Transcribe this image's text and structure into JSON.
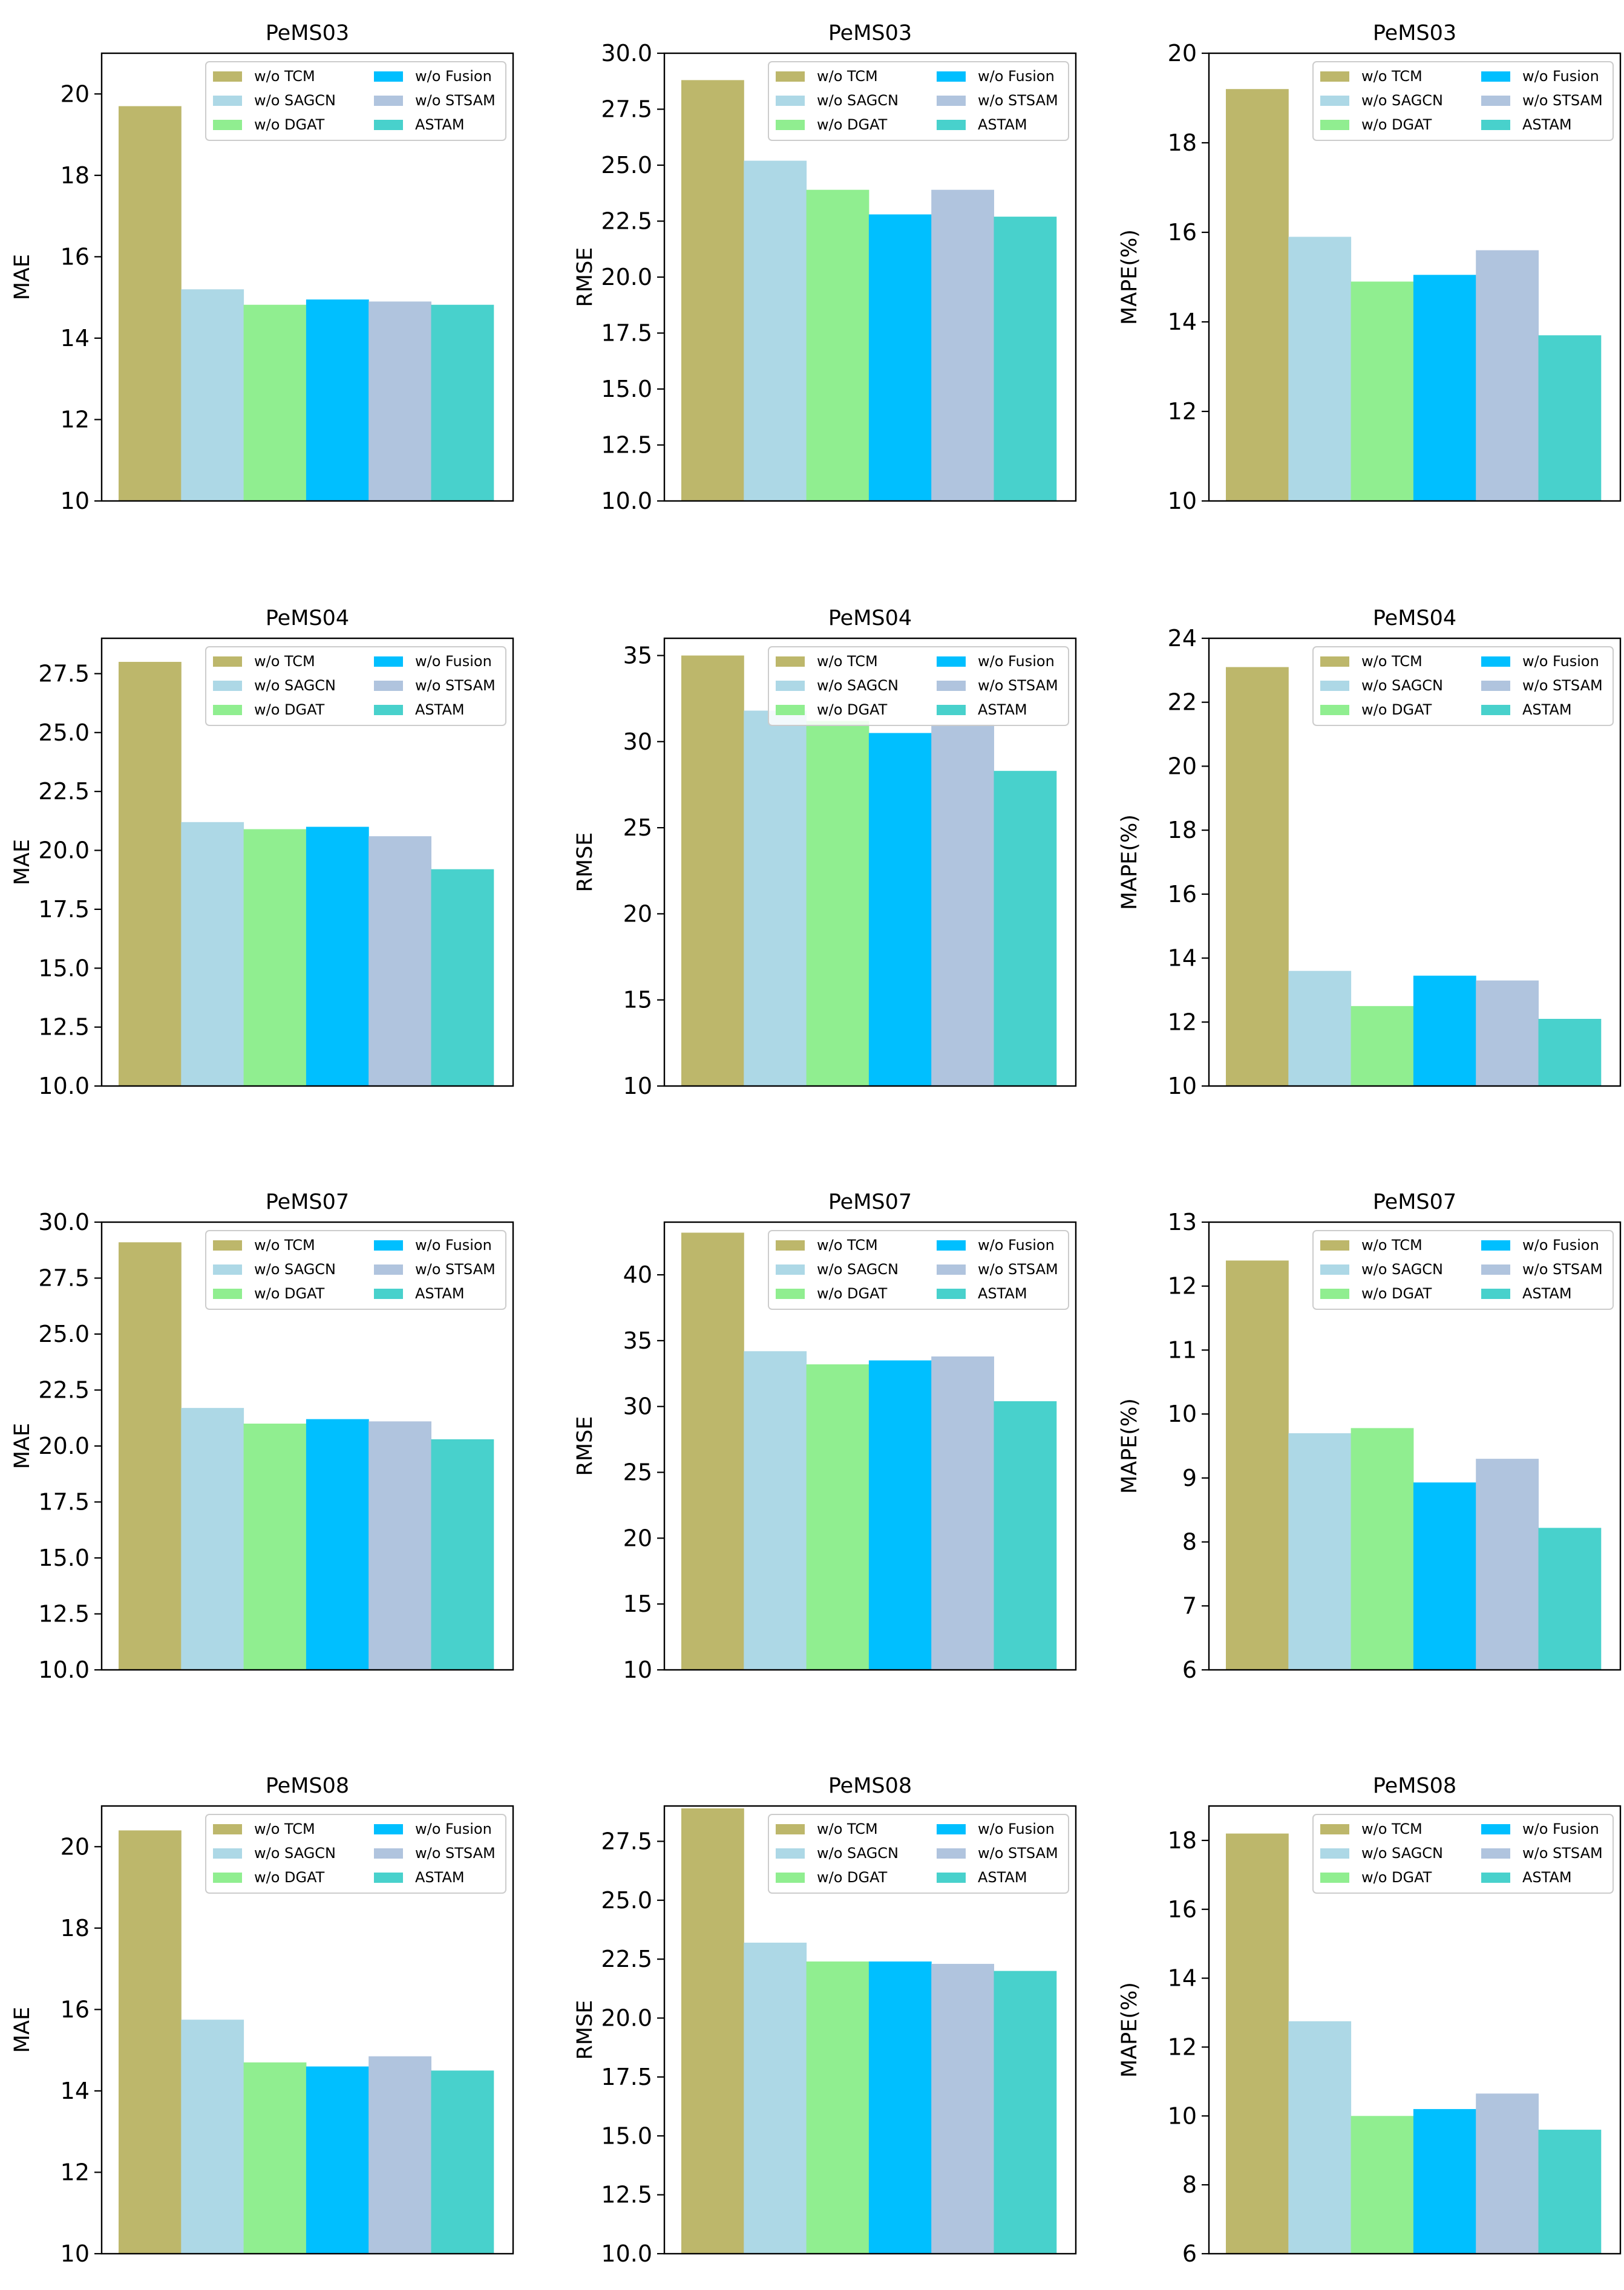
{
  "legend_entries": [
    "w/o TCM",
    "w/o SAGCN",
    "w/o DGAT",
    "w/o Fusion",
    "w/o STSAM",
    "ASTAM"
  ],
  "colors": [
    "#bdb76b",
    "#add8e6",
    "#90ee90",
    "#00bfff",
    "#b0c4de",
    "#48d1cc"
  ],
  "chart_data": [
    {
      "type": "bar",
      "title": "PeMS03",
      "ylabel": "MAE",
      "ylim": [
        10,
        21
      ],
      "ticks": [
        "10",
        "12",
        "14",
        "16",
        "18",
        "20"
      ],
      "categories": [
        "w/o TCM",
        "w/o SAGCN",
        "w/o DGAT",
        "w/o Fusion",
        "w/o STSAM",
        "ASTAM"
      ],
      "values": [
        19.7,
        15.2,
        14.82,
        14.95,
        14.9,
        14.82
      ]
    },
    {
      "type": "bar",
      "title": "PeMS03",
      "ylabel": "RMSE",
      "ylim": [
        10,
        30
      ],
      "ticks": [
        "10.0",
        "12.5",
        "15.0",
        "17.5",
        "20.0",
        "22.5",
        "25.0",
        "27.5",
        "30.0"
      ],
      "categories": [
        "w/o TCM",
        "w/o SAGCN",
        "w/o DGAT",
        "w/o Fusion",
        "w/o STSAM",
        "ASTAM"
      ],
      "values": [
        28.8,
        25.2,
        23.9,
        22.8,
        23.9,
        22.7
      ]
    },
    {
      "type": "bar",
      "title": "PeMS03",
      "ylabel": "MAPE(%)",
      "ylim": [
        10,
        20
      ],
      "ticks": [
        "10",
        "12",
        "14",
        "16",
        "18",
        "20"
      ],
      "categories": [
        "w/o TCM",
        "w/o SAGCN",
        "w/o DGAT",
        "w/o Fusion",
        "w/o STSAM",
        "ASTAM"
      ],
      "values": [
        19.2,
        15.9,
        14.9,
        15.05,
        15.6,
        13.7
      ]
    },
    {
      "type": "bar",
      "title": "PeMS04",
      "ylabel": "MAE",
      "ylim": [
        10,
        29
      ],
      "ticks": [
        "10.0",
        "12.5",
        "15.0",
        "17.5",
        "20.0",
        "22.5",
        "25.0",
        "27.5"
      ],
      "categories": [
        "w/o TCM",
        "w/o SAGCN",
        "w/o DGAT",
        "w/o Fusion",
        "w/o STSAM",
        "ASTAM"
      ],
      "values": [
        28.0,
        21.2,
        20.9,
        21.0,
        20.6,
        19.2
      ]
    },
    {
      "type": "bar",
      "title": "PeMS04",
      "ylabel": "RMSE",
      "ylim": [
        10,
        36
      ],
      "ticks": [
        "10",
        "15",
        "20",
        "25",
        "30",
        "35"
      ],
      "categories": [
        "w/o TCM",
        "w/o SAGCN",
        "w/o DGAT",
        "w/o Fusion",
        "w/o STSAM",
        "ASTAM"
      ],
      "values": [
        35.0,
        31.8,
        31.2,
        30.5,
        31.0,
        28.3
      ]
    },
    {
      "type": "bar",
      "title": "PeMS04",
      "ylabel": "MAPE(%)",
      "ylim": [
        10,
        24
      ],
      "ticks": [
        "10",
        "12",
        "14",
        "16",
        "18",
        "20",
        "22",
        "24"
      ],
      "categories": [
        "w/o TCM",
        "w/o SAGCN",
        "w/o DGAT",
        "w/o Fusion",
        "w/o STSAM",
        "ASTAM"
      ],
      "values": [
        23.1,
        13.6,
        12.5,
        13.45,
        13.3,
        12.1
      ]
    },
    {
      "type": "bar",
      "title": "PeMS07",
      "ylabel": "MAE",
      "ylim": [
        10,
        30
      ],
      "ticks": [
        "10.0",
        "12.5",
        "15.0",
        "17.5",
        "20.0",
        "22.5",
        "25.0",
        "27.5",
        "30.0"
      ],
      "categories": [
        "w/o TCM",
        "w/o SAGCN",
        "w/o DGAT",
        "w/o Fusion",
        "w/o STSAM",
        "ASTAM"
      ],
      "values": [
        29.1,
        21.7,
        21.0,
        21.2,
        21.1,
        20.3
      ]
    },
    {
      "type": "bar",
      "title": "PeMS07",
      "ylabel": "RMSE",
      "ylim": [
        10,
        44
      ],
      "ticks": [
        "10",
        "15",
        "20",
        "25",
        "30",
        "35",
        "40"
      ],
      "categories": [
        "w/o TCM",
        "w/o SAGCN",
        "w/o DGAT",
        "w/o Fusion",
        "w/o STSAM",
        "ASTAM"
      ],
      "values": [
        43.2,
        34.2,
        33.2,
        33.5,
        33.8,
        30.4
      ]
    },
    {
      "type": "bar",
      "title": "PeMS07",
      "ylabel": "MAPE(%)",
      "ylim": [
        6,
        13
      ],
      "ticks": [
        "6",
        "7",
        "8",
        "9",
        "10",
        "11",
        "12",
        "13"
      ],
      "categories": [
        "w/o TCM",
        "w/o SAGCN",
        "w/o DGAT",
        "w/o Fusion",
        "w/o STSAM",
        "ASTAM"
      ],
      "values": [
        12.4,
        9.7,
        9.78,
        8.93,
        9.3,
        8.22
      ]
    },
    {
      "type": "bar",
      "title": "PeMS08",
      "ylabel": "MAE",
      "ylim": [
        10,
        21
      ],
      "ticks": [
        "10",
        "12",
        "14",
        "16",
        "18",
        "20"
      ],
      "categories": [
        "w/o TCM",
        "w/o SAGCN",
        "w/o DGAT",
        "w/o Fusion",
        "w/o STSAM",
        "ASTAM"
      ],
      "values": [
        20.4,
        15.75,
        14.7,
        14.6,
        14.85,
        14.5
      ]
    },
    {
      "type": "bar",
      "title": "PeMS08",
      "ylabel": "RMSE",
      "ylim": [
        10,
        29
      ],
      "ticks": [
        "10.0",
        "12.5",
        "15.0",
        "17.5",
        "20.0",
        "22.5",
        "25.0",
        "27.5"
      ],
      "categories": [
        "w/o TCM",
        "w/o SAGCN",
        "w/o DGAT",
        "w/o Fusion",
        "w/o STSAM",
        "ASTAM"
      ],
      "values": [
        28.9,
        23.2,
        22.4,
        22.4,
        22.3,
        22.0
      ]
    },
    {
      "type": "bar",
      "title": "PeMS08",
      "ylabel": "MAPE(%)",
      "ylim": [
        6,
        19
      ],
      "ticks": [
        "6",
        "8",
        "10",
        "12",
        "14",
        "16",
        "18"
      ],
      "categories": [
        "w/o TCM",
        "w/o SAGCN",
        "w/o DGAT",
        "w/o Fusion",
        "w/o STSAM",
        "ASTAM"
      ],
      "values": [
        18.2,
        12.75,
        10.0,
        10.2,
        10.65,
        9.6
      ]
    }
  ]
}
